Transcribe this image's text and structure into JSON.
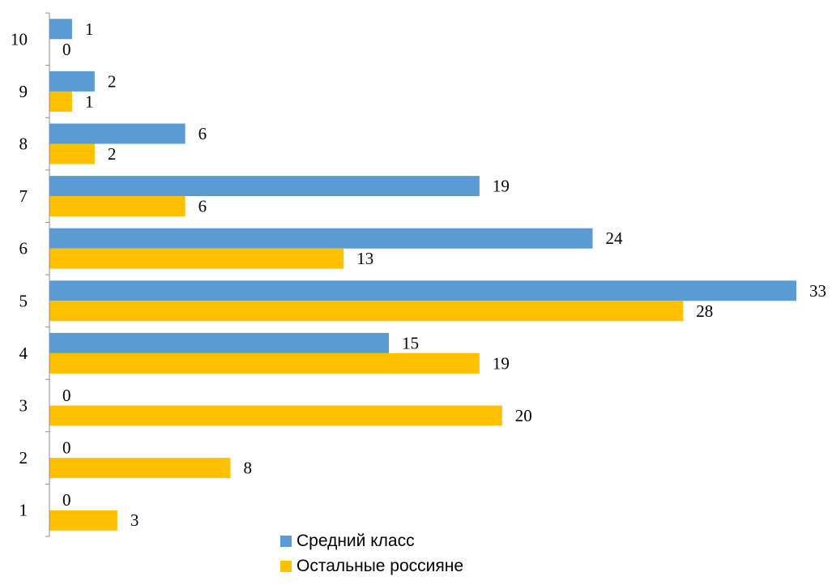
{
  "chart_data": {
    "type": "bar",
    "orientation": "horizontal",
    "categories": [
      "10",
      "9",
      "8",
      "7",
      "6",
      "5",
      "4",
      "3",
      "2",
      "1"
    ],
    "series": [
      {
        "name": "Средний класс",
        "color": "#5b9bd5",
        "values": [
          1,
          2,
          6,
          19,
          24,
          33,
          15,
          0,
          0,
          0
        ]
      },
      {
        "name": "Остальные россияне",
        "color": "#ffc000",
        "values": [
          0,
          1,
          2,
          6,
          13,
          28,
          19,
          20,
          8,
          3
        ]
      }
    ],
    "xlim": [
      0,
      33
    ],
    "grid": false,
    "data_labels": true,
    "legend_position": "bottom"
  }
}
